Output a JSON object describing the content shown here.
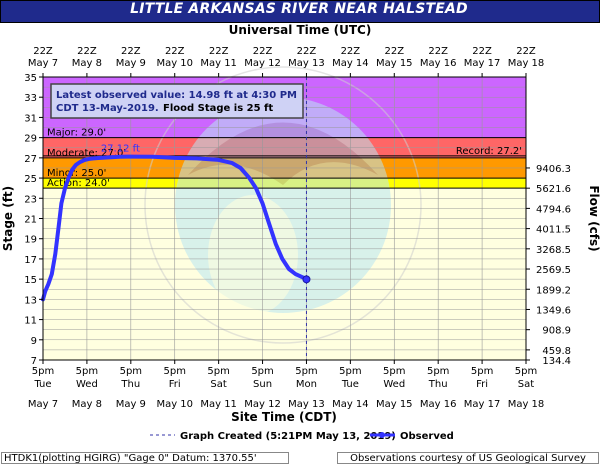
{
  "header": {
    "title": "LITTLE ARKANSAS RIVER NEAR HALSTEAD"
  },
  "footer": {
    "left": "HTDK1(plotting HGIRG) \"Gage 0\" Datum: 1370.55'",
    "right": "Observations courtesy of US Geological Survey"
  },
  "chart_data": {
    "type": "line",
    "title": "LITTLE ARKANSAS RIVER NEAR HALSTEAD",
    "top_axis_label": "Universal Time (UTC)",
    "top_axis_ticks": [
      {
        "time": "22Z",
        "date": "May 7"
      },
      {
        "time": "22Z",
        "date": "May 8"
      },
      {
        "time": "22Z",
        "date": "May 9"
      },
      {
        "time": "22Z",
        "date": "May 10"
      },
      {
        "time": "22Z",
        "date": "May 11"
      },
      {
        "time": "22Z",
        "date": "May 12"
      },
      {
        "time": "22Z",
        "date": "May 13"
      },
      {
        "time": "22Z",
        "date": "May 14"
      },
      {
        "time": "22Z",
        "date": "May 15"
      },
      {
        "time": "22Z",
        "date": "May 16"
      },
      {
        "time": "22Z",
        "date": "May 17"
      },
      {
        "time": "22Z",
        "date": "May 18"
      }
    ],
    "xlabel": "Site Time (CDT)",
    "x_ticks": [
      {
        "time": "5pm",
        "day": "Tue",
        "date": "May 7"
      },
      {
        "time": "5pm",
        "day": "Wed",
        "date": "May 8"
      },
      {
        "time": "5pm",
        "day": "Thu",
        "date": "May 9"
      },
      {
        "time": "5pm",
        "day": "Fri",
        "date": "May 10"
      },
      {
        "time": "5pm",
        "day": "Sat",
        "date": "May 11"
      },
      {
        "time": "5pm",
        "day": "Sun",
        "date": "May 12"
      },
      {
        "time": "5pm",
        "day": "Mon",
        "date": "May 13"
      },
      {
        "time": "5pm",
        "day": "Tue",
        "date": "May 14"
      },
      {
        "time": "5pm",
        "day": "Wed",
        "date": "May 15"
      },
      {
        "time": "5pm",
        "day": "Thu",
        "date": "May 16"
      },
      {
        "time": "5pm",
        "day": "Fri",
        "date": "May 17"
      },
      {
        "time": "5pm",
        "day": "Sat",
        "date": "May 18"
      }
    ],
    "x_units": "days since May 7 5pm CDT",
    "xlim": [
      0,
      11
    ],
    "ylabel": "Stage (ft)",
    "ylim": [
      7,
      35
    ],
    "y_ticks": [
      7,
      9,
      11,
      13,
      15,
      17,
      19,
      21,
      23,
      25,
      27,
      29,
      31,
      33,
      35
    ],
    "ylabel_right": "Flow (cfs)",
    "flow_ticks": [
      {
        "stage": 26.0,
        "label": "9406.3"
      },
      {
        "stage": 24.0,
        "label": "5621.6"
      },
      {
        "stage": 22.0,
        "label": "4794.6"
      },
      {
        "stage": 20.0,
        "label": "4011.5"
      },
      {
        "stage": 18.0,
        "label": "3268.5"
      },
      {
        "stage": 16.0,
        "label": "2569.5"
      },
      {
        "stage": 14.0,
        "label": "1899.2"
      },
      {
        "stage": 12.0,
        "label": "1349.6"
      },
      {
        "stage": 10.0,
        "label": "908.9"
      },
      {
        "stage": 8.0,
        "label": "459.8"
      },
      {
        "stage": 6.0,
        "label": "134.4"
      }
    ],
    "flood_categories": [
      {
        "name": "Major",
        "label": "Major: 29.0'",
        "from": 29.0,
        "to": 35.0,
        "color": "#cc66ff"
      },
      {
        "name": "Moderate",
        "label": "Moderate: 27.0'",
        "from": 27.0,
        "to": 29.0,
        "color": "#ff6666"
      },
      {
        "name": "Minor",
        "label": "Minor: 25.0'",
        "from": 25.0,
        "to": 27.0,
        "color": "#ff9900"
      },
      {
        "name": "Action",
        "label": "Action: 24.0'",
        "from": 24.0,
        "to": 25.0,
        "color": "#ffff00"
      }
    ],
    "record": {
      "label": "Record: 27.2'",
      "value": 27.2
    },
    "crest_label": "27.12 ft",
    "graph_created": {
      "label": "Graph Created (5:21PM May 13, 2019)",
      "x": 6.0
    },
    "latest_observation": {
      "line1": "Latest observed value: 14.98 ft at 4:30 PM",
      "line2": "CDT 13-May-2019.",
      "line3": "Flood Stage is 25 ft"
    },
    "series": [
      {
        "name": "Observed",
        "color": "#3333ff",
        "x": [
          0.0,
          0.05,
          0.12,
          0.2,
          0.28,
          0.35,
          0.42,
          0.5,
          0.58,
          0.66,
          0.75,
          0.85,
          0.95,
          1.05,
          1.15,
          1.3,
          1.5,
          1.75,
          2.0,
          2.5,
          3.0,
          3.5,
          4.0,
          4.3,
          4.5,
          4.7,
          4.85,
          5.0,
          5.15,
          5.3,
          5.45,
          5.6,
          5.75,
          5.9,
          6.0
        ],
        "y": [
          13.0,
          13.8,
          14.5,
          15.5,
          17.5,
          20.0,
          22.5,
          24.0,
          25.0,
          25.8,
          26.3,
          26.6,
          26.8,
          26.9,
          26.95,
          27.0,
          27.05,
          27.1,
          27.12,
          27.1,
          27.0,
          26.95,
          26.8,
          26.5,
          26.0,
          25.0,
          24.0,
          22.5,
          20.5,
          18.5,
          17.0,
          16.0,
          15.5,
          15.2,
          14.98
        ]
      }
    ],
    "legend_observed": "Observed",
    "colors": {
      "grid": "#999999",
      "banner": "#1f2a8c",
      "observed": "#3333ff"
    }
  }
}
